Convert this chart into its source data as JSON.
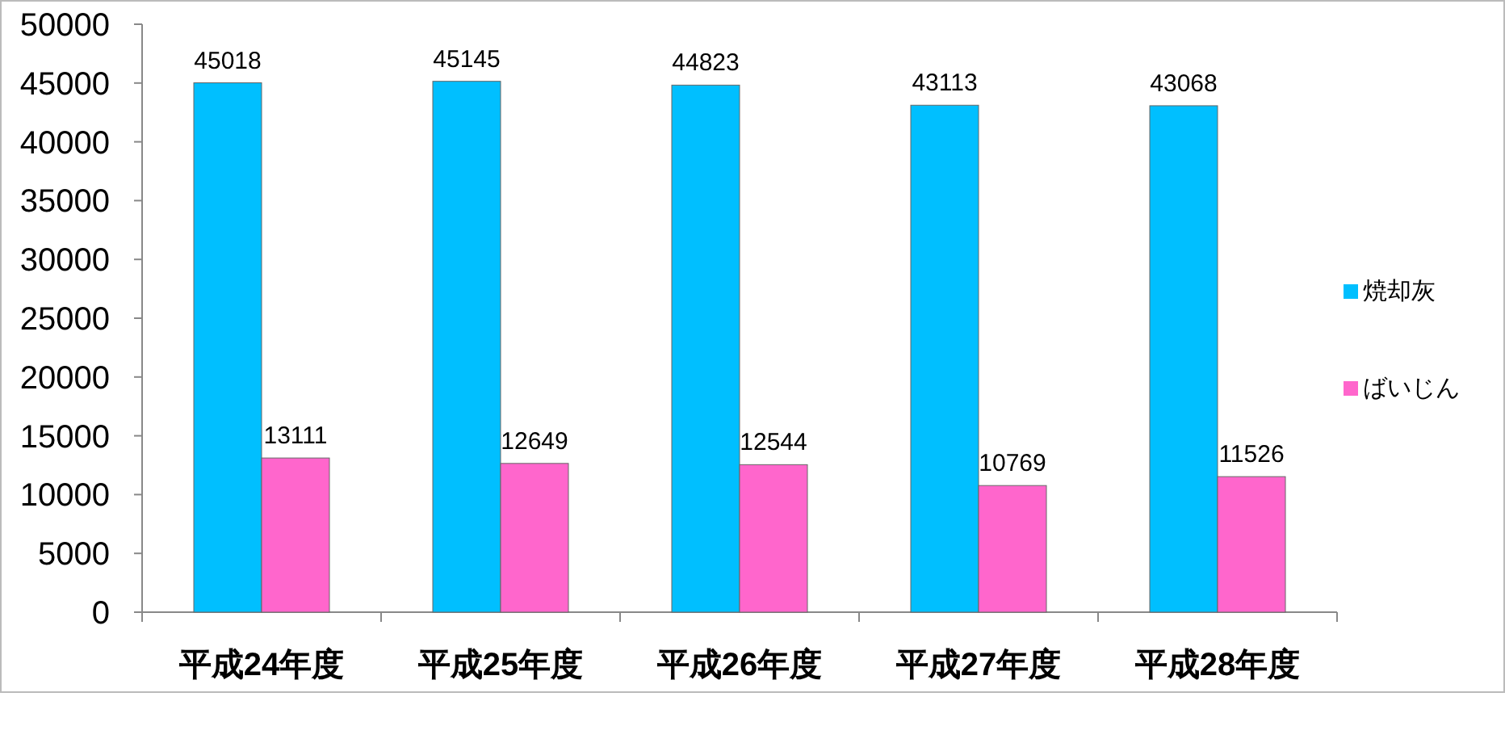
{
  "chart_data": {
    "type": "bar",
    "categories": [
      "平成24年度",
      "平成25年度",
      "平成26年度",
      "平成27年度",
      "平成28年度"
    ],
    "series": [
      {
        "name": "焼却灰",
        "color": "#00bfff",
        "values": [
          45018,
          45145,
          44823,
          43113,
          43068
        ]
      },
      {
        "name": "ばいじん",
        "color": "#ff66cc",
        "values": [
          13111,
          12649,
          12544,
          10769,
          11526
        ]
      }
    ],
    "ylim": [
      0,
      50000
    ],
    "yticks": [
      0,
      5000,
      10000,
      15000,
      20000,
      25000,
      30000,
      35000,
      40000,
      45000,
      50000
    ],
    "data_labels": true,
    "legend": "right",
    "grid": false
  }
}
